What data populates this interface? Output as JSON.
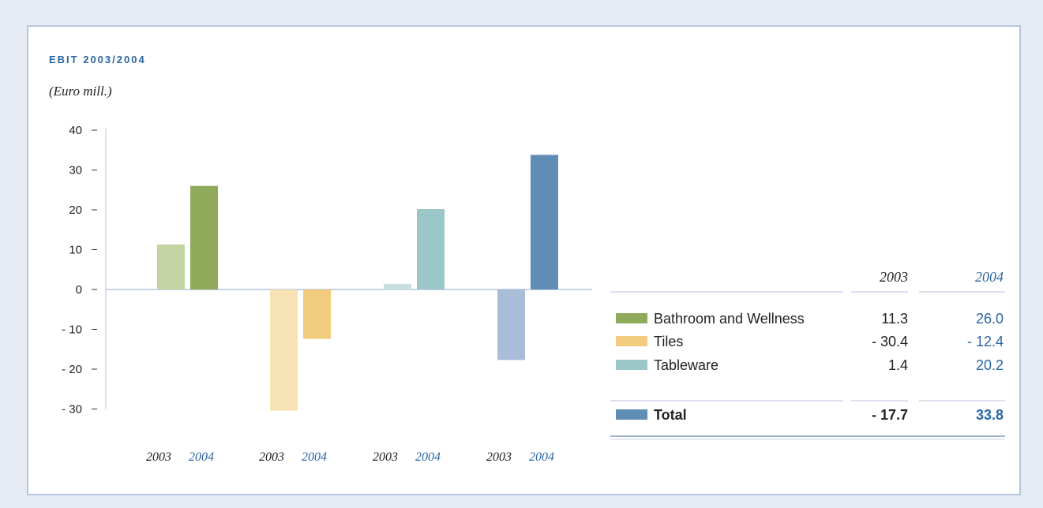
{
  "chart_data": {
    "type": "bar",
    "title": "EBIT 2003/2004",
    "subtitle": "(Euro mill.)",
    "ylim": [
      -30,
      40
    ],
    "yticks": [
      40,
      30,
      20,
      10,
      0,
      -10,
      -20,
      -30
    ],
    "ytick_labels": [
      "40",
      "30",
      "20",
      "10",
      "0",
      "- 10",
      "- 20",
      "- 30"
    ],
    "categories": [
      "Bathroom and Wellness",
      "Tiles",
      "Tableware",
      "Total"
    ],
    "x_sublabels": [
      "2003",
      "2004"
    ],
    "series": [
      {
        "name": "2003",
        "values": [
          11.3,
          -30.4,
          1.4,
          -17.7
        ]
      },
      {
        "name": "2004",
        "values": [
          26.0,
          -12.4,
          20.2,
          33.8
        ]
      }
    ],
    "colors": {
      "2003": [
        "#c4d3a4",
        "#f7e2b5",
        "#c7dfe0",
        "#a9bcd9"
      ],
      "2004": [
        "#8faa5b",
        "#f2cc7e",
        "#9cc7c9",
        "#5f8db5"
      ],
      "accent": "#2b66a3"
    },
    "legend_table": {
      "placement": "right",
      "col_headers": [
        "2003",
        "2004"
      ],
      "rows": [
        {
          "label": "Bathroom and Wellness",
          "v2003": "11.3",
          "v2004": "26.0",
          "swatch": "#8faa5b"
        },
        {
          "label": "Tiles",
          "v2003": "- 30.4",
          "v2004": "- 12.4",
          "swatch": "#f2cc7e"
        },
        {
          "label": "Tableware",
          "v2003": "1.4",
          "v2004": "20.2",
          "swatch": "#9cc7c9"
        }
      ],
      "total": {
        "label": "Total",
        "v2003": "- 17.7",
        "v2004": "33.8",
        "swatch": "#5f8db5"
      }
    }
  }
}
